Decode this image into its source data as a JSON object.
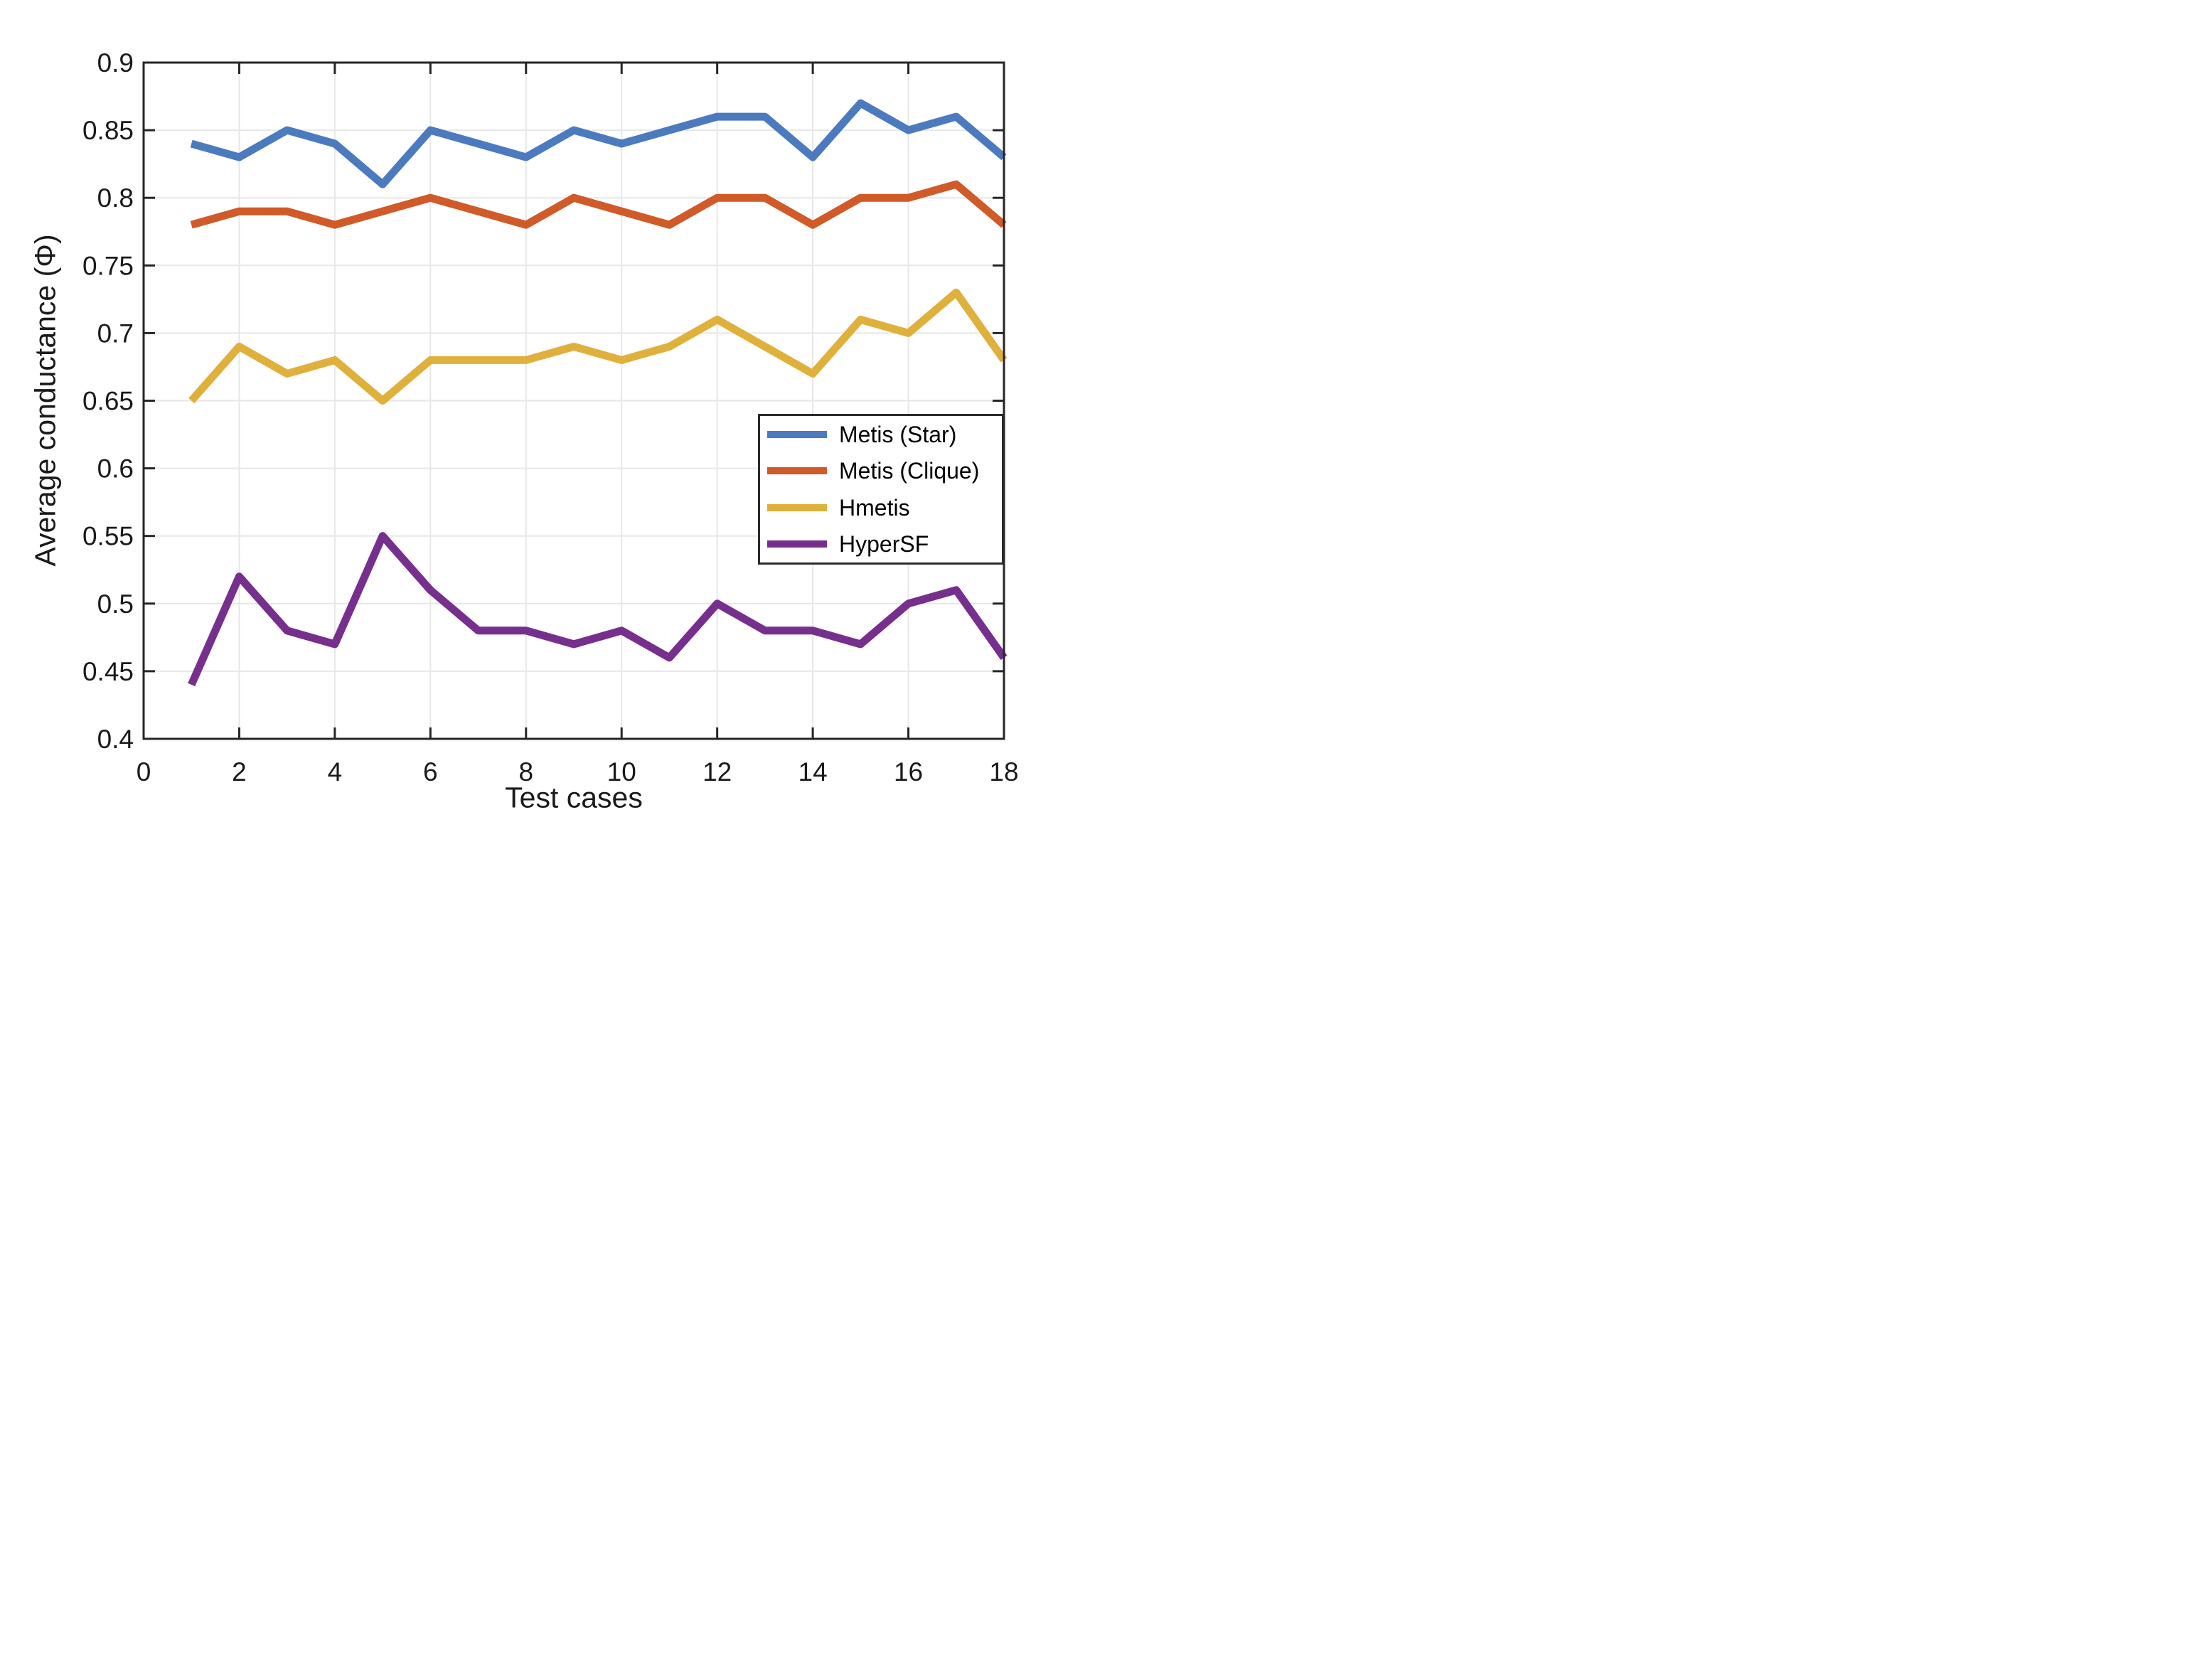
{
  "figure": {
    "background": "#ffffff",
    "axis_color": "#262626",
    "grid_color": "#e7e7e7",
    "text_color": "#1a1a1a"
  },
  "chart_data": {
    "type": "line",
    "title": "",
    "xlabel": "Test cases",
    "ylabel": "Average conductance (Φ)",
    "x": [
      1,
      2,
      3,
      4,
      5,
      6,
      7,
      8,
      9,
      10,
      11,
      12,
      13,
      14,
      15,
      16,
      17,
      18
    ],
    "series": [
      {
        "name": "Metis (Star)",
        "color": "#4b7bbe",
        "values": [
          0.84,
          0.83,
          0.85,
          0.84,
          0.81,
          0.85,
          0.84,
          0.83,
          0.85,
          0.84,
          0.85,
          0.86,
          0.86,
          0.83,
          0.87,
          0.85,
          0.86,
          0.83
        ]
      },
      {
        "name": "Metis (Clique)",
        "color": "#d05a28",
        "values": [
          0.78,
          0.79,
          0.79,
          0.78,
          0.79,
          0.8,
          0.79,
          0.78,
          0.8,
          0.79,
          0.78,
          0.8,
          0.8,
          0.78,
          0.8,
          0.8,
          0.81,
          0.78
        ]
      },
      {
        "name": "Hmetis",
        "color": "#dfb03c",
        "values": [
          0.65,
          0.69,
          0.67,
          0.68,
          0.65,
          0.68,
          0.68,
          0.68,
          0.69,
          0.68,
          0.69,
          0.71,
          0.69,
          0.67,
          0.71,
          0.7,
          0.73,
          0.68
        ]
      },
      {
        "name": "HyperSF",
        "color": "#772f8e",
        "values": [
          0.44,
          0.52,
          0.48,
          0.47,
          0.55,
          0.51,
          0.48,
          0.48,
          0.47,
          0.48,
          0.46,
          0.5,
          0.48,
          0.48,
          0.47,
          0.5,
          0.51,
          0.46
        ]
      }
    ],
    "xlim": [
      0,
      18
    ],
    "ylim": [
      0.4,
      0.9
    ],
    "xticks": [
      0,
      2,
      4,
      6,
      8,
      10,
      12,
      14,
      16,
      18
    ],
    "xtick_labels": [
      "0",
      "2",
      "4",
      "6",
      "8",
      "10",
      "12",
      "14",
      "16",
      "18"
    ],
    "yticks": [
      0.4,
      0.45,
      0.5,
      0.55,
      0.6,
      0.65,
      0.7,
      0.75,
      0.8,
      0.85,
      0.9
    ],
    "ytick_labels": [
      "0.4",
      "0.45",
      "0.5",
      "0.55",
      "0.6",
      "0.65",
      "0.7",
      "0.75",
      "0.8",
      "0.85",
      "0.9"
    ],
    "grid": true,
    "legend_position": "inside-right-middle",
    "legend_entries": [
      "Metis (Star)",
      "Metis (Clique)",
      "Hmetis",
      "HyperSF"
    ]
  }
}
